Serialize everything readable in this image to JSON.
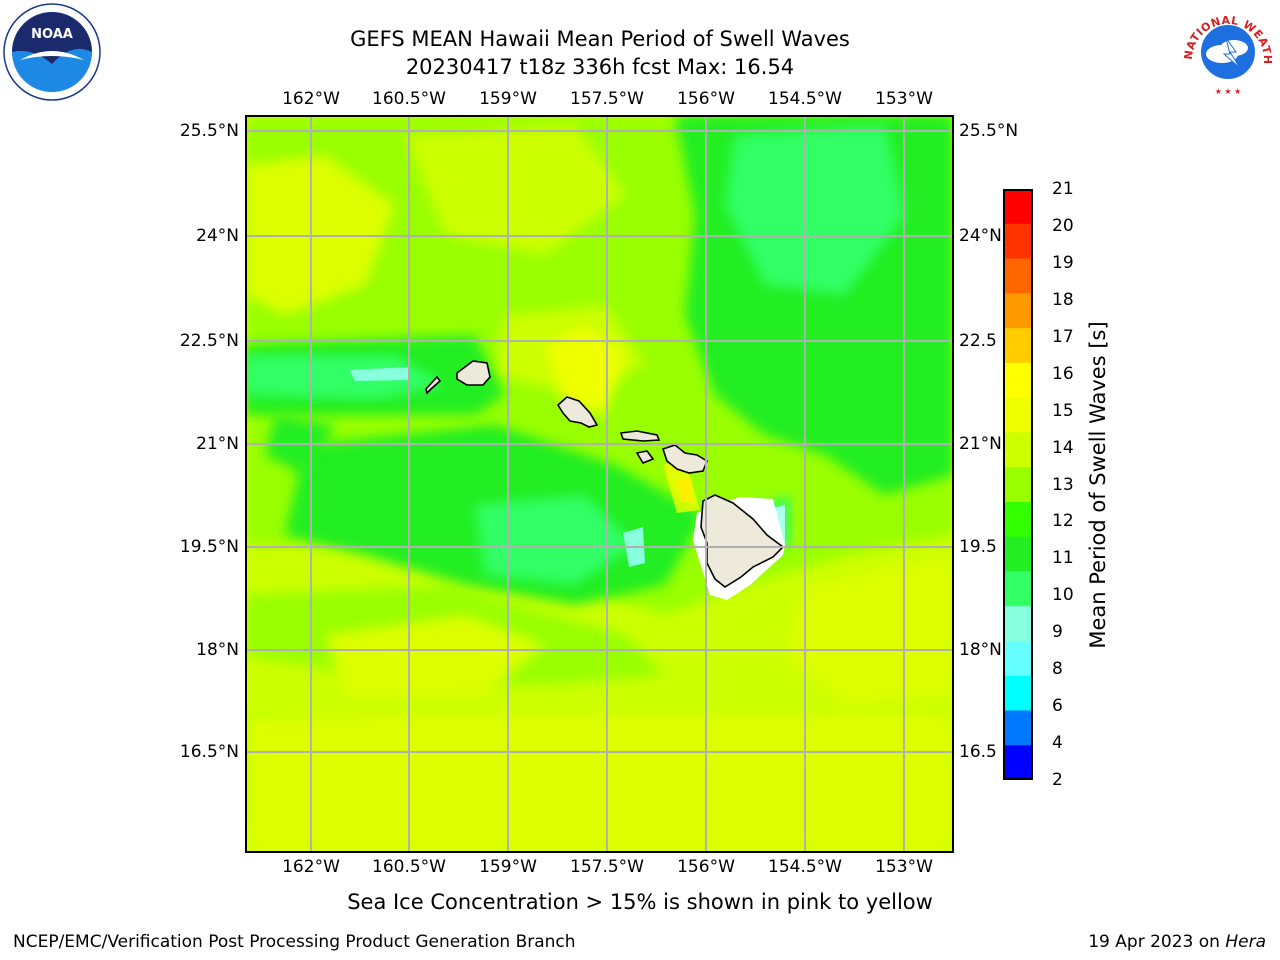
{
  "title": {
    "line1": "GEFS MEAN Hawaii Mean Period of Swell Waves",
    "line2": "20230417 t18z 336h fcst   Max: 16.54"
  },
  "map": {
    "lon_ticks": [
      "162°W",
      "160.5°W",
      "159°W",
      "157.5°W",
      "156°W",
      "154.5°W",
      "153°W"
    ],
    "lat_ticks_left": [
      "25.5°N",
      "24°N",
      "22.5°N",
      "21°N",
      "19.5°N",
      "18°N",
      "16.5°N"
    ],
    "lat_ticks_right": [
      "25.5°N",
      "24°N",
      "22.5",
      "21°N",
      "19.5",
      "18°N",
      "16.5"
    ],
    "land_color": "#eeeadb",
    "grid_color": "#b0b0b0"
  },
  "colorbar": {
    "label": "Mean Period of Swell Waves [s]",
    "ticks": [
      "21",
      "20",
      "19",
      "18",
      "17",
      "16",
      "15",
      "14",
      "13",
      "12",
      "11",
      "10",
      "9",
      "8",
      "6",
      "4",
      "2"
    ],
    "colors": [
      "#ff0000",
      "#ff3300",
      "#ff6600",
      "#ff9900",
      "#ffcc00",
      "#ffff00",
      "#eeff00",
      "#ccff00",
      "#99ff00",
      "#33ff00",
      "#22ee22",
      "#33ff66",
      "#88ffdd",
      "#66ffff",
      "#00ffff",
      "#0077ff",
      "#0000ff"
    ]
  },
  "sea_ice_note": "Sea Ice Concentration > 15% is shown in pink to yellow",
  "footer": {
    "left": "NCEP/EMC/Verification Post Processing Product Generation Branch",
    "date": "19 Apr 2023 on ",
    "machine": "Hera"
  },
  "logos": {
    "noaa_text": "NOAA",
    "nws_text": "NATIONAL WEATHER SERVICE"
  }
}
